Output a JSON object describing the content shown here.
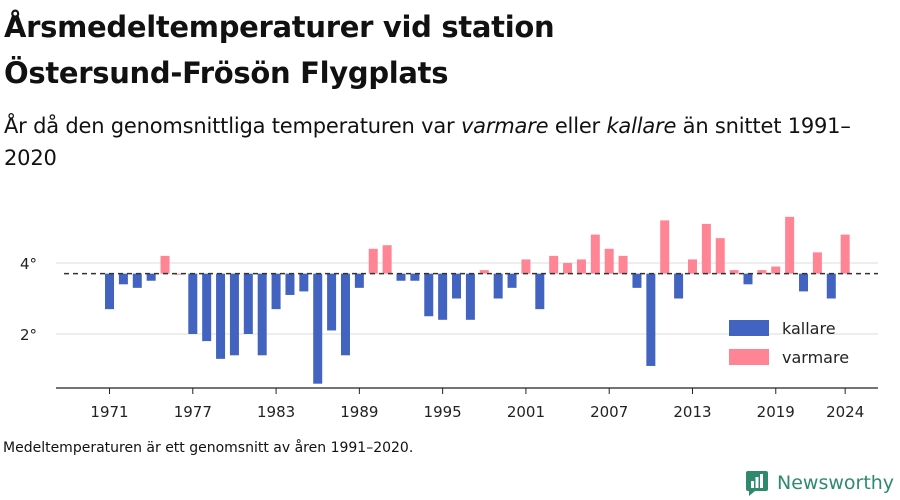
{
  "title_line1": "Årsmedeltemperaturer vid station",
  "title_line2": "Östersund-Frösön Flygplats",
  "subtitle": {
    "part1": "År då den genomsnittliga temperaturen var ",
    "warm_word": "varmare",
    "part2": " eller ",
    "cold_word": "kallare",
    "part3": " än snittet 1991–2020"
  },
  "note": "Medeltemperaturen är ett genomsnitt av åren 1991–2020.",
  "brand": "Newsworthy",
  "colors": {
    "cold": "#4263c0",
    "warm": "#ff8494",
    "baseline": "#333333",
    "grid": "#dddddd",
    "brand": "#2f8a6d"
  },
  "chart_data": {
    "type": "bar",
    "baseline": 3.7,
    "ylim": [
      0.5,
      5.8
    ],
    "xlim": [
      1967,
      2027
    ],
    "yticks": [
      2,
      4
    ],
    "ytick_labels": [
      "2°",
      "4°"
    ],
    "xticks": [
      1971,
      1977,
      1983,
      1989,
      1995,
      2001,
      2007,
      2013,
      2019,
      2024
    ],
    "xtick_labels": [
      "1971",
      "1977",
      "1983",
      "1989",
      "1995",
      "2001",
      "2007",
      "2013",
      "2019",
      "2024"
    ],
    "legend": {
      "position": "bottom-right",
      "cold_label": "kallare",
      "warm_label": "varmare"
    },
    "years": [
      1971,
      1972,
      1973,
      1974,
      1975,
      1976,
      1977,
      1978,
      1979,
      1980,
      1981,
      1982,
      1983,
      1984,
      1985,
      1986,
      1987,
      1988,
      1989,
      1990,
      1991,
      1992,
      1993,
      1994,
      1995,
      1996,
      1997,
      1998,
      1999,
      2000,
      2001,
      2002,
      2003,
      2004,
      2005,
      2006,
      2007,
      2008,
      2009,
      2010,
      2011,
      2012,
      2013,
      2014,
      2015,
      2016,
      2017,
      2018,
      2019,
      2020,
      2021,
      2022,
      2023,
      2024
    ],
    "values": [
      2.7,
      3.4,
      3.3,
      3.5,
      4.2,
      3.7,
      2.0,
      1.8,
      1.3,
      1.4,
      2.0,
      1.4,
      2.7,
      3.1,
      3.2,
      0.6,
      2.1,
      1.4,
      3.3,
      4.4,
      4.5,
      3.5,
      3.5,
      2.5,
      2.4,
      3.0,
      2.4,
      3.8,
      3.0,
      3.3,
      4.1,
      2.7,
      4.2,
      4.0,
      4.1,
      4.8,
      4.4,
      4.2,
      3.3,
      1.1,
      5.2,
      3.0,
      4.1,
      5.1,
      4.7,
      3.8,
      3.4,
      3.8,
      3.9,
      5.3,
      3.2,
      4.3,
      3.0,
      4.8
    ]
  }
}
